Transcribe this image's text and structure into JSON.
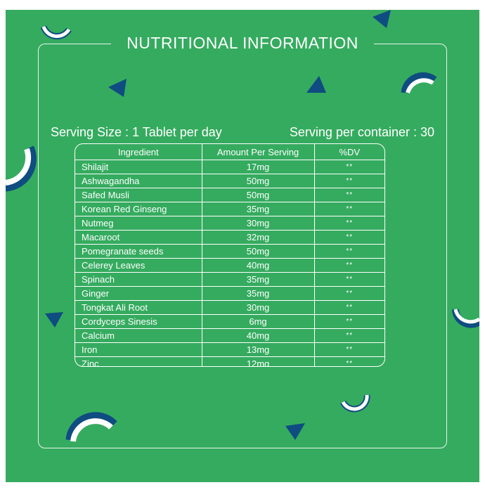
{
  "title": "NUTRITIONAL INFORMATION",
  "serving_size": "Serving Size : 1 Tablet per day",
  "servings_per_container": "Serving per container : 30",
  "table": {
    "headers": [
      "Ingredient",
      "Amount Per Serving",
      "%DV"
    ],
    "rows": [
      {
        "ingredient": "Shilajit",
        "amount": "17mg",
        "dv": "**"
      },
      {
        "ingredient": "Ashwagandha",
        "amount": "50mg",
        "dv": "**"
      },
      {
        "ingredient": "Safed Musli",
        "amount": "50mg",
        "dv": "**"
      },
      {
        "ingredient": "Korean Red Ginseng",
        "amount": "35mg",
        "dv": "**"
      },
      {
        "ingredient": "Nutmeg",
        "amount": "30mg",
        "dv": "**"
      },
      {
        "ingredient": "Macaroot",
        "amount": "32mg",
        "dv": "**"
      },
      {
        "ingredient": "Pomegranate seeds",
        "amount": "50mg",
        "dv": "**"
      },
      {
        "ingredient": "Celerey Leaves",
        "amount": "40mg",
        "dv": "**"
      },
      {
        "ingredient": "Spinach",
        "amount": "35mg",
        "dv": "**"
      },
      {
        "ingredient": "Ginger",
        "amount": "35mg",
        "dv": "**"
      },
      {
        "ingredient": "Tongkat Ali Root",
        "amount": "30mg",
        "dv": "**"
      },
      {
        "ingredient": "Cordyceps Sinesis",
        "amount": "6mg",
        "dv": "**"
      },
      {
        "ingredient": "Calcium",
        "amount": "40mg",
        "dv": "**"
      },
      {
        "ingredient": "Iron",
        "amount": "13mg",
        "dv": "**"
      },
      {
        "ingredient": "Zinc",
        "amount": "12mg",
        "dv": "**"
      }
    ]
  },
  "colors": {
    "background": "#35ab5f",
    "accent_blue": "#0f4c81",
    "text": "#ffffff"
  }
}
